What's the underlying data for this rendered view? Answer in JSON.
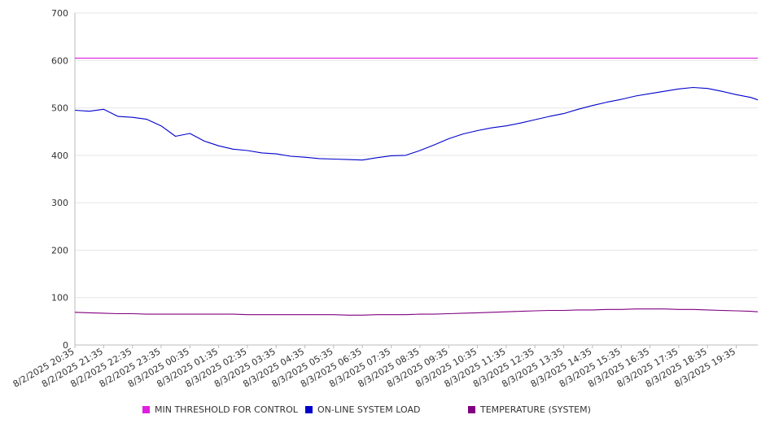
{
  "chart_data": {
    "type": "line",
    "y_ticks": [
      "0",
      "100",
      "200",
      "300",
      "400",
      "500",
      "600",
      "700"
    ],
    "ylim": [
      0,
      700
    ],
    "grid": true,
    "legend_position": "bottom",
    "x_tick_labels": [
      "8/2/2025 20:35",
      "8/2/2025 21:35",
      "8/2/2025 22:35",
      "8/2/2025 23:35",
      "8/3/2025 00:35",
      "8/3/2025 01:35",
      "8/3/2025 02:35",
      "8/3/2025 03:35",
      "8/3/2025 04:35",
      "8/3/2025 05:35",
      "8/3/2025 06:35",
      "8/3/2025 07:35",
      "8/3/2025 08:35",
      "8/3/2025 09:35",
      "8/3/2025 10:35",
      "8/3/2025 11:35",
      "8/3/2025 12:35",
      "8/3/2025 13:35",
      "8/3/2025 14:35",
      "8/3/2025 15:35",
      "8/3/2025 16:35",
      "8/3/2025 17:35",
      "8/3/2025 18:35",
      "8/3/2025 19:35"
    ],
    "x": [
      "8/2/2025 20:35",
      "8/2/2025 21:05",
      "8/2/2025 21:35",
      "8/2/2025 22:05",
      "8/2/2025 22:35",
      "8/2/2025 23:05",
      "8/2/2025 23:35",
      "8/3/2025 00:05",
      "8/3/2025 00:35",
      "8/3/2025 01:05",
      "8/3/2025 01:35",
      "8/3/2025 02:05",
      "8/3/2025 02:35",
      "8/3/2025 03:05",
      "8/3/2025 03:35",
      "8/3/2025 04:05",
      "8/3/2025 04:35",
      "8/3/2025 05:05",
      "8/3/2025 05:35",
      "8/3/2025 06:05",
      "8/3/2025 06:35",
      "8/3/2025 07:05",
      "8/3/2025 07:35",
      "8/3/2025 08:05",
      "8/3/2025 08:35",
      "8/3/2025 09:05",
      "8/3/2025 09:35",
      "8/3/2025 10:05",
      "8/3/2025 10:35",
      "8/3/2025 11:05",
      "8/3/2025 11:35",
      "8/3/2025 12:05",
      "8/3/2025 12:35",
      "8/3/2025 13:05",
      "8/3/2025 13:35",
      "8/3/2025 14:05",
      "8/3/2025 14:35",
      "8/3/2025 15:05",
      "8/3/2025 15:35",
      "8/3/2025 16:05",
      "8/3/2025 16:35",
      "8/3/2025 17:05",
      "8/3/2025 17:35",
      "8/3/2025 18:05",
      "8/3/2025 18:35",
      "8/3/2025 19:05",
      "8/3/2025 19:35",
      "8/3/2025 20:05",
      "8/3/2025 20:20"
    ],
    "series": [
      {
        "name": "MIN THRESHOLD FOR CONTROL",
        "color": "#e020e0",
        "values": [
          605,
          605,
          605,
          605,
          605,
          605,
          605,
          605,
          605,
          605,
          605,
          605,
          605,
          605,
          605,
          605,
          605,
          605,
          605,
          605,
          605,
          605,
          605,
          605,
          605,
          605,
          605,
          605,
          605,
          605,
          605,
          605,
          605,
          605,
          605,
          605,
          605,
          605,
          605,
          605,
          605,
          605,
          605,
          605,
          605,
          605,
          605,
          605,
          605
        ]
      },
      {
        "name": "ON-LINE SYSTEM LOAD",
        "color": "#0000cc",
        "values": [
          495,
          493,
          497,
          482,
          480,
          476,
          462,
          440,
          446,
          430,
          420,
          413,
          410,
          405,
          403,
          398,
          396,
          393,
          392,
          391,
          390,
          395,
          399,
          400,
          410,
          422,
          435,
          445,
          452,
          458,
          462,
          468,
          475,
          482,
          488,
          497,
          505,
          512,
          518,
          525,
          530,
          535,
          540,
          543,
          541,
          535,
          528,
          522,
          517
        ]
      },
      {
        "name": "TEMPERATURE (SYSTEM)",
        "color": "#800080",
        "values": [
          69,
          68,
          67,
          66,
          66,
          65,
          65,
          65,
          65,
          65,
          65,
          65,
          64,
          64,
          64,
          64,
          64,
          64,
          64,
          63,
          63,
          64,
          64,
          64,
          65,
          65,
          66,
          67,
          68,
          69,
          70,
          71,
          72,
          73,
          73,
          74,
          74,
          75,
          75,
          76,
          76,
          76,
          75,
          75,
          74,
          73,
          72,
          71,
          70
        ]
      }
    ]
  }
}
